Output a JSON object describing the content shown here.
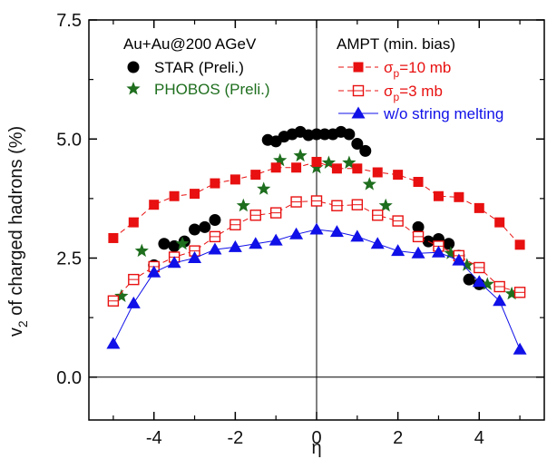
{
  "chart_data": {
    "type": "scatter",
    "xlabel": "η",
    "ylabel": "v2 of charged hadrons (%)",
    "xlim": [
      -5.6,
      5.6
    ],
    "ylim": [
      -0.9,
      7.5
    ],
    "x_ticks": [
      -4,
      -2,
      0,
      2,
      4
    ],
    "x_tick_labels": [
      "-4",
      "-2",
      "0",
      "2",
      "4"
    ],
    "y_ticks": [
      0.0,
      2.5,
      5.0,
      7.5
    ],
    "y_tick_labels": [
      "0.0",
      "2.5",
      "5.0",
      "7.5"
    ],
    "headers": {
      "left": "Au+Au@200 AGeV",
      "right": "AMPT (min. bias)"
    },
    "series": [
      {
        "name": "STAR (Preli.)",
        "color": "#000000",
        "marker": "circle",
        "x": [
          -4.0,
          -3.75,
          -3.5,
          -3.25,
          -3.0,
          -2.75,
          -2.5,
          -1.2,
          -1.0,
          -0.8,
          -0.6,
          -0.4,
          -0.2,
          0.0,
          0.2,
          0.4,
          0.6,
          0.8,
          1.0,
          1.2,
          2.5,
          2.75,
          3.0,
          3.25,
          3.5,
          3.75,
          4.0
        ],
        "y": [
          2.35,
          2.8,
          2.75,
          2.85,
          3.1,
          3.15,
          3.3,
          4.98,
          4.95,
          5.05,
          5.1,
          5.15,
          5.08,
          5.1,
          5.1,
          5.1,
          5.15,
          5.1,
          4.9,
          4.75,
          3.15,
          2.85,
          2.9,
          2.8,
          2.55,
          2.05,
          1.95
        ]
      },
      {
        "name": "PHOBOS (Preli.)",
        "color": "#1e6e1e",
        "marker": "star",
        "x": [
          -4.8,
          -4.3,
          -3.3,
          -1.8,
          -1.3,
          -0.9,
          -0.4,
          0.0,
          0.3,
          0.8,
          1.3,
          1.7,
          3.3,
          3.7,
          4.2,
          4.8
        ],
        "y": [
          1.7,
          2.65,
          2.8,
          3.6,
          3.95,
          4.55,
          4.65,
          4.4,
          4.5,
          4.5,
          4.05,
          3.6,
          2.6,
          2.35,
          1.95,
          1.75
        ]
      },
      {
        "name": "σp=10 mb",
        "color": "#e81010",
        "marker": "filled-square",
        "x": [
          -5.0,
          -4.5,
          -4.0,
          -3.5,
          -3.0,
          -2.5,
          -2.0,
          -1.5,
          -1.0,
          -0.5,
          0.0,
          0.5,
          1.0,
          1.5,
          2.0,
          2.5,
          3.0,
          3.5,
          4.0,
          4.5,
          5.0
        ],
        "y": [
          2.92,
          3.25,
          3.62,
          3.8,
          3.85,
          4.07,
          4.15,
          4.25,
          4.4,
          4.4,
          4.52,
          4.38,
          4.38,
          4.3,
          4.25,
          4.1,
          3.8,
          3.78,
          3.55,
          3.25,
          2.78
        ]
      },
      {
        "name": "σp=3 mb",
        "color": "#e81010",
        "marker": "open-square",
        "x": [
          -5.0,
          -4.5,
          -4.0,
          -3.5,
          -3.0,
          -2.5,
          -2.0,
          -1.5,
          -1.0,
          -0.5,
          0.0,
          0.5,
          1.0,
          1.5,
          2.0,
          2.5,
          3.0,
          3.5,
          4.0,
          4.5,
          5.0
        ],
        "y": [
          1.6,
          2.05,
          2.32,
          2.52,
          2.65,
          2.95,
          3.2,
          3.4,
          3.45,
          3.68,
          3.7,
          3.6,
          3.62,
          3.4,
          3.28,
          2.95,
          2.75,
          2.55,
          2.3,
          1.9,
          1.78
        ]
      },
      {
        "name": "w/o string melting",
        "color": "#1010e8",
        "marker": "triangle",
        "x": [
          -5.0,
          -4.5,
          -4.0,
          -3.5,
          -3.0,
          -2.5,
          -2.0,
          -1.5,
          -1.0,
          -0.5,
          0.0,
          0.5,
          1.0,
          1.5,
          2.0,
          2.5,
          3.0,
          3.5,
          4.0,
          4.5,
          5.0
        ],
        "y": [
          0.7,
          1.55,
          2.2,
          2.4,
          2.5,
          2.68,
          2.73,
          2.8,
          2.87,
          3.0,
          3.1,
          3.05,
          2.95,
          2.8,
          2.65,
          2.6,
          2.62,
          2.45,
          2.0,
          1.6,
          0.58
        ]
      }
    ],
    "legend_placement": "top-right"
  }
}
